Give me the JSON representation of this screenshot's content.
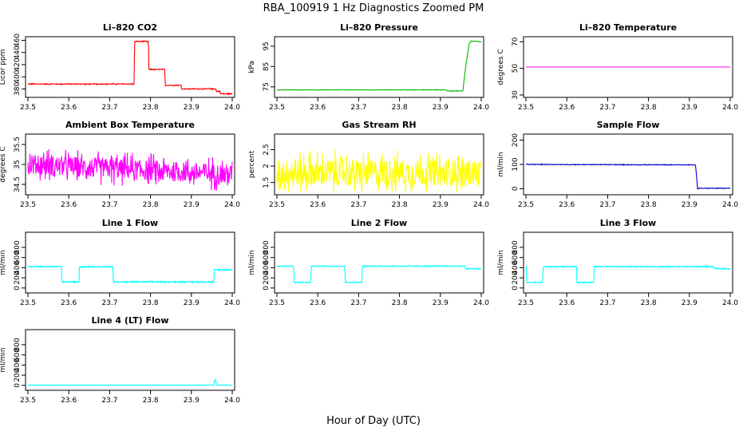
{
  "figure": {
    "title": "RBA_100919  1 Hz Diagnostics Zoomed PM",
    "xlabel": "Hour of Day (UTC)"
  },
  "chart_data": [
    {
      "type": "line",
      "title": "Li–820 CO2",
      "ylabel": "Licor ppm",
      "color": "#ff0000",
      "xlim": [
        23.5,
        24.0
      ],
      "x_ticks": [
        "23.5",
        "23.6",
        "23.7",
        "23.8",
        "23.9",
        "24.0"
      ],
      "ylim": [
        370,
        462
      ],
      "y_ticks": [
        380,
        400,
        420,
        440,
        460
      ],
      "noise": 0.7,
      "x": [
        23.5,
        23.76,
        23.761,
        23.795,
        23.796,
        23.835,
        23.836,
        23.875,
        23.876,
        23.96,
        23.961,
        23.97,
        23.971,
        24.0
      ],
      "y": [
        388,
        388,
        458,
        458,
        412,
        412,
        386,
        386,
        380,
        380,
        376,
        376,
        372,
        372
      ]
    },
    {
      "type": "line",
      "title": "Li–820 Pressure",
      "ylabel": "kPa",
      "color": "#00bb00",
      "xlim": [
        23.5,
        24.0
      ],
      "x_ticks": [
        "23.5",
        "23.6",
        "23.7",
        "23.8",
        "23.9",
        "24.0"
      ],
      "ylim": [
        71,
        98.5
      ],
      "y_ticks": [
        75,
        85,
        95
      ],
      "noise": 0.1,
      "x": [
        23.5,
        23.915,
        23.916,
        23.955,
        23.962,
        23.97,
        23.975,
        24.0
      ],
      "y": [
        73.5,
        73.5,
        73,
        73,
        85,
        96,
        97.5,
        97.2
      ]
    },
    {
      "type": "line",
      "title": "Li–820 Temperature",
      "ylabel": "degrees C",
      "color": "#ff00ff",
      "xlim": [
        23.5,
        24.0
      ],
      "x_ticks": [
        "23.5",
        "23.6",
        "23.7",
        "23.8",
        "23.9",
        "24.0"
      ],
      "ylim": [
        30,
        72
      ],
      "y_ticks": [
        30,
        50,
        70
      ],
      "noise": 0,
      "x": [
        23.5,
        24.0
      ],
      "y": [
        51,
        51
      ]
    },
    {
      "type": "line",
      "title": "Ambient Box Temperature",
      "ylabel": "degrees C",
      "color": "#ff00ff",
      "xlim": [
        23.5,
        24.0
      ],
      "x_ticks": [
        "23.5",
        "23.6",
        "23.7",
        "23.8",
        "23.9",
        "24.0"
      ],
      "ylim": [
        34.3,
        35.7
      ],
      "y_ticks": [
        34.5,
        35.0,
        35.5
      ],
      "noise": 0.25,
      "x": [
        23.5,
        23.6,
        23.7,
        23.8,
        23.9,
        24.0
      ],
      "y": [
        35.0,
        34.95,
        34.9,
        34.85,
        34.8,
        34.75
      ]
    },
    {
      "type": "line",
      "title": "Gas Stream RH",
      "ylabel": "percent",
      "color": "#ffff00",
      "xlim": [
        23.5,
        24.0
      ],
      "x_ticks": [
        "23.5",
        "23.6",
        "23.7",
        "23.8",
        "23.9",
        "24.0"
      ],
      "ylim": [
        1.2,
        2.9
      ],
      "y_ticks": [
        1.5,
        2.0,
        2.5
      ],
      "noise": 0.4,
      "x": [
        23.5,
        24.0
      ],
      "y": [
        1.8,
        1.8
      ]
    },
    {
      "type": "line",
      "title": "Sample Flow",
      "ylabel": "ml/min",
      "color": "#0000cc",
      "xlim": [
        23.5,
        24.0
      ],
      "x_ticks": [
        "23.5",
        "23.6",
        "23.7",
        "23.8",
        "23.9",
        "24.0"
      ],
      "ylim": [
        -15,
        215
      ],
      "y_ticks": [
        0,
        100,
        200
      ],
      "noise": 1.2,
      "x": [
        23.5,
        23.915,
        23.92,
        24.0
      ],
      "y": [
        100,
        98,
        2,
        2
      ]
    },
    {
      "type": "line",
      "title": "Line 1 Flow",
      "ylabel": "ml/min",
      "color": "#00ffff",
      "xlim": [
        23.5,
        24.0
      ],
      "x_ticks": [
        "23.5",
        "23.6",
        "23.7",
        "23.8",
        "23.9",
        "24.0"
      ],
      "ylim": [
        -50,
        1050
      ],
      "y_ticks": [
        0,
        200,
        400,
        600,
        800
      ],
      "noise": 10,
      "x": [
        23.5,
        23.582,
        23.583,
        23.625,
        23.626,
        23.708,
        23.709,
        23.955,
        23.956,
        24.0
      ],
      "y": [
        420,
        420,
        120,
        120,
        420,
        420,
        120,
        120,
        360,
        360
      ]
    },
    {
      "type": "line",
      "title": "Line 2 Flow",
      "ylabel": "ml/min",
      "color": "#00ffff",
      "xlim": [
        23.5,
        24.0
      ],
      "x_ticks": [
        "23.5",
        "23.6",
        "23.7",
        "23.8",
        "23.9",
        "24.0"
      ],
      "ylim": [
        -50,
        1050
      ],
      "y_ticks": [
        0,
        200,
        400,
        600,
        800
      ],
      "noise": 8,
      "x": [
        23.5,
        23.541,
        23.542,
        23.583,
        23.584,
        23.666,
        23.667,
        23.708,
        23.709,
        23.96,
        23.961,
        24.0
      ],
      "y": [
        430,
        430,
        110,
        110,
        430,
        430,
        110,
        110,
        430,
        430,
        380,
        380
      ]
    },
    {
      "type": "line",
      "title": "Line 3 Flow",
      "ylabel": "ml/min",
      "color": "#00ffff",
      "xlim": [
        23.5,
        24.0
      ],
      "x_ticks": [
        "23.5",
        "23.6",
        "23.7",
        "23.8",
        "23.9",
        "24.0"
      ],
      "ylim": [
        -50,
        1050
      ],
      "y_ticks": [
        0,
        200,
        400,
        600,
        800
      ],
      "noise": 8,
      "x": [
        23.5,
        23.501,
        23.502,
        23.541,
        23.542,
        23.624,
        23.625,
        23.666,
        23.667,
        23.96,
        23.961,
        24.0
      ],
      "y": [
        420,
        420,
        110,
        110,
        420,
        420,
        110,
        110,
        420,
        420,
        380,
        380
      ]
    },
    {
      "type": "line",
      "title": "Line 4 (LT) Flow",
      "ylabel": "ml/min",
      "color": "#00ffff",
      "xlim": [
        23.5,
        24.0
      ],
      "x_ticks": [
        "23.5",
        "23.6",
        "23.7",
        "23.8",
        "23.9",
        "24.0"
      ],
      "ylim": [
        -50,
        1050
      ],
      "y_ticks": [
        0,
        200,
        400,
        600,
        800
      ],
      "noise": 3,
      "x": [
        23.5,
        23.955,
        23.956,
        23.958,
        23.962,
        24.0
      ],
      "y": [
        5,
        5,
        80,
        120,
        5,
        5
      ]
    }
  ]
}
